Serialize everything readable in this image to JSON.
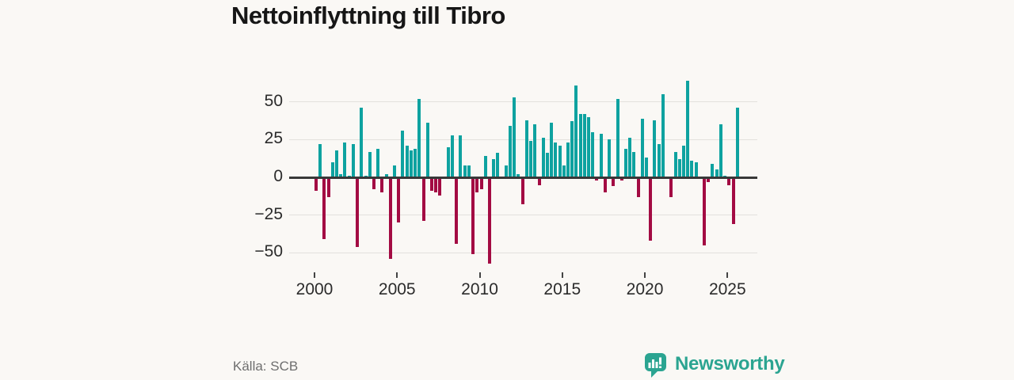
{
  "title": "Nettoinflyttning till Tibro",
  "source": "Källa: SCB",
  "branding": {
    "name": "Newsworthy",
    "color": "#2BA491",
    "icon": "newsworthy-speech-bubble-chart-icon"
  },
  "chart_data": {
    "type": "bar",
    "title": "Nettoinflyttning till Tibro",
    "frequency": "quarterly",
    "x_start": "2000 Q1",
    "x_end": "2025 Q3",
    "x_tick_labels": [
      "2000",
      "2005",
      "2010",
      "2015",
      "2020",
      "2025"
    ],
    "y_ticks": [
      {
        "v": 50,
        "label": "50"
      },
      {
        "v": 25,
        "label": "25"
      },
      {
        "v": 0,
        "label": "0"
      },
      {
        "v": -25,
        "label": "−25"
      },
      {
        "v": -50,
        "label": "−50"
      }
    ],
    "ylim": [
      -60,
      66
    ],
    "grid": "horizontal",
    "positive_color": "#0EA2A0",
    "negative_color": "#A30B43",
    "values": [
      -9,
      22,
      -41,
      -13,
      10,
      18,
      2,
      23,
      1,
      22,
      -46,
      46,
      1,
      17,
      -8,
      19,
      -10,
      2,
      -54,
      8,
      -30,
      31,
      21,
      18,
      19,
      52,
      -29,
      36,
      -9,
      -10,
      -12,
      0,
      20,
      28,
      -44,
      28,
      8,
      8,
      -51,
      -10,
      -8,
      14,
      -57,
      12,
      16,
      0,
      8,
      34,
      53,
      2,
      -18,
      38,
      24,
      35,
      -5,
      26,
      16,
      36,
      23,
      21,
      8,
      23,
      37,
      61,
      42,
      42,
      40,
      30,
      -2,
      29,
      -10,
      25,
      -6,
      52,
      -2,
      19,
      26,
      17,
      -13,
      39,
      13,
      -42,
      38,
      22,
      55,
      0,
      -13,
      17,
      12,
      21,
      64,
      11,
      10,
      -1,
      -45,
      -3,
      9,
      5,
      35,
      1,
      -5,
      -31,
      46
    ]
  }
}
